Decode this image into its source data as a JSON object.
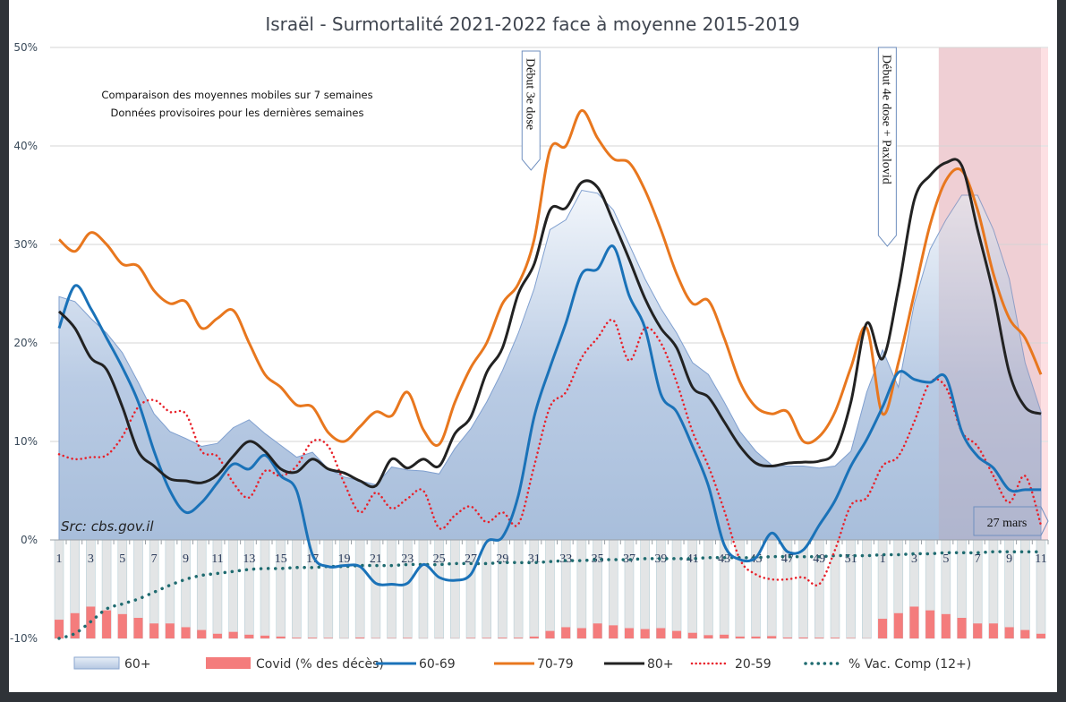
{
  "chart_data": {
    "type": "line",
    "title": "Israël - Surmortalité 2021-2022 face à moyenne 2015-2019",
    "notes": [
      "Comparaison des moyennes mobiles sur 7 semaines",
      "Données provisoires pour les dernières semaines"
    ],
    "source": "Src: cbs.gov.il",
    "xlabel": "",
    "ylabel": "",
    "ylim": [
      -10,
      50
    ],
    "yticks": [
      50,
      40,
      30,
      20,
      10,
      0,
      -10
    ],
    "ytick_labels": [
      "50%",
      "40%",
      "30%",
      "20%",
      "10%",
      "0%",
      "-10%"
    ],
    "grid": true,
    "legend_position": "bottom",
    "x": [
      "1",
      "2",
      "3",
      "4",
      "5",
      "6",
      "7",
      "8",
      "9",
      "10",
      "11",
      "12",
      "13",
      "14",
      "15",
      "16",
      "17",
      "18",
      "19",
      "20",
      "21",
      "22",
      "23",
      "24",
      "25",
      "26",
      "27",
      "28",
      "29",
      "30",
      "31",
      "32",
      "33",
      "34",
      "35",
      "36",
      "37",
      "38",
      "39",
      "40",
      "41",
      "42",
      "43",
      "44",
      "45",
      "46",
      "47",
      "48",
      "49",
      "50",
      "51",
      "52",
      "1",
      "2",
      "3",
      "4",
      "5",
      "6",
      "7",
      "8",
      "9",
      "10",
      "11"
    ],
    "xtick_labels": [
      "1",
      "3",
      "5",
      "7",
      "9",
      "11",
      "13",
      "15",
      "17",
      "19",
      "21",
      "23",
      "25",
      "27",
      "29",
      "31",
      "33",
      "35",
      "37",
      "39",
      "41",
      "43",
      "45",
      "47",
      "49",
      "51",
      "1",
      "3",
      "5",
      "7",
      "9",
      "11"
    ],
    "series": [
      {
        "name": "60+",
        "kind": "area",
        "color": "#a9c0de",
        "values": [
          24.7,
          24.2,
          22.5,
          21.0,
          19.0,
          16.0,
          12.8,
          11.0,
          10.3,
          9.5,
          9.8,
          11.4,
          12.2,
          10.8,
          9.6,
          8.4,
          8.9,
          7.2,
          6.4,
          6.0,
          5.6,
          7.4,
          7.1,
          7.0,
          6.7,
          9.3,
          11.3,
          14.0,
          17.2,
          21.0,
          25.5,
          31.5,
          32.5,
          35.5,
          35.2,
          33.5,
          30.0,
          26.5,
          23.5,
          21.0,
          18.0,
          16.8,
          14.0,
          11.0,
          9.0,
          7.6,
          7.5,
          7.5,
          7.3,
          7.5,
          9.0,
          15.0,
          19.3,
          15.5,
          24.0,
          29.5,
          32.5,
          35.0,
          35.0,
          31.5,
          26.5,
          18.0,
          13.0
        ]
      },
      {
        "name": "Covid (% des décès)",
        "kind": "bar",
        "color": "#f47c7c",
        "values": [
          20,
          27,
          34,
          30,
          26,
          22,
          16,
          16,
          12,
          9,
          5,
          7,
          4,
          3,
          2,
          0.8,
          0.8,
          0.6,
          0.2,
          1,
          0.4,
          0.4,
          0.6,
          0.2,
          0.2,
          0.2,
          0.6,
          0.6,
          0.8,
          0.8,
          2,
          8,
          12,
          11,
          16,
          14,
          11,
          10,
          11,
          8,
          6,
          3.5,
          4,
          2,
          2,
          2.5,
          1,
          1,
          0.8,
          0.8,
          0.5,
          0.2,
          21,
          27,
          34,
          30,
          26,
          22,
          16,
          16,
          12,
          9,
          5
        ]
      },
      {
        "name": "60-69",
        "kind": "line",
        "color": "#1a72b8",
        "values": [
          21.5,
          25.8,
          23.5,
          20.5,
          17.5,
          14.0,
          9.0,
          5.0,
          2.8,
          3.8,
          5.8,
          7.7,
          7.2,
          8.6,
          6.5,
          5.0,
          -1.5,
          -2.7,
          -2.6,
          -2.7,
          -4.4,
          -4.5,
          -4.4,
          -2.5,
          -3.8,
          -4.1,
          -3.5,
          -0.2,
          0.3,
          4.5,
          12.5,
          17.5,
          22.0,
          27.0,
          27.5,
          29.8,
          24.8,
          21.5,
          14.8,
          13.0,
          9.5,
          5.5,
          -0.5,
          -2.0,
          -1.8,
          0.7,
          -1.2,
          -1.0,
          1.5,
          4.0,
          7.5,
          10.2,
          13.5,
          17.0,
          16.3,
          16.0,
          16.5,
          11.0,
          8.5,
          7.3,
          5.1,
          5.1,
          5.1
        ]
      },
      {
        "name": "70-79",
        "kind": "line",
        "color": "#e8771e",
        "values": [
          30.5,
          29.3,
          31.2,
          30.0,
          28.0,
          27.8,
          25.3,
          24.0,
          24.2,
          21.5,
          22.5,
          23.3,
          20.0,
          16.8,
          15.5,
          13.7,
          13.5,
          10.9,
          10.0,
          11.5,
          13.0,
          12.6,
          15.0,
          11.2,
          9.7,
          14.0,
          17.5,
          20.0,
          24.0,
          26.0,
          30.5,
          39.6,
          40.0,
          43.6,
          40.8,
          38.7,
          38.3,
          35.5,
          31.5,
          27.0,
          24.0,
          24.3,
          20.5,
          16.0,
          13.5,
          12.8,
          13.0,
          10.0,
          10.5,
          13.0,
          17.5,
          21.5,
          12.8,
          18.0,
          25.0,
          32.0,
          36.5,
          37.5,
          33.5,
          27.0,
          22.5,
          20.5,
          16.8
        ]
      },
      {
        "name": "80+",
        "kind": "line",
        "color": "#222222",
        "values": [
          23.2,
          21.5,
          18.5,
          17.3,
          13.5,
          9.0,
          7.5,
          6.2,
          6.0,
          5.8,
          6.6,
          8.5,
          10.0,
          9.0,
          7.2,
          6.9,
          8.2,
          7.2,
          6.8,
          6.0,
          5.5,
          8.2,
          7.3,
          8.2,
          7.5,
          10.8,
          12.5,
          17.0,
          19.5,
          25.0,
          28.0,
          33.5,
          33.7,
          36.3,
          35.8,
          32.3,
          28.5,
          24.5,
          21.5,
          19.5,
          15.5,
          14.5,
          12.0,
          9.5,
          7.8,
          7.5,
          7.8,
          7.9,
          8.0,
          9.0,
          14.0,
          22.0,
          18.4,
          25.5,
          34.5,
          37.0,
          38.3,
          38.0,
          31.5,
          25.0,
          17.0,
          13.5,
          12.8
        ]
      },
      {
        "name": "20-59",
        "kind": "line",
        "color": "#e8212a",
        "style": "dotted",
        "values": [
          8.7,
          8.2,
          8.4,
          8.6,
          10.5,
          13.5,
          14.2,
          13.0,
          12.8,
          9.0,
          8.5,
          5.8,
          4.3,
          7.0,
          6.5,
          7.5,
          10.0,
          9.5,
          5.8,
          2.8,
          4.8,
          3.2,
          4.2,
          5.0,
          1.2,
          2.5,
          3.4,
          1.8,
          2.8,
          1.6,
          7.5,
          13.5,
          15.0,
          18.5,
          20.5,
          22.3,
          18.2,
          21.5,
          20.0,
          16.0,
          11.0,
          7.5,
          3.0,
          -2.0,
          -3.5,
          -4.0,
          -4.0,
          -3.8,
          -4.5,
          -1.0,
          3.5,
          4.3,
          7.5,
          8.5,
          12.0,
          16.0,
          15.5,
          11.0,
          9.5,
          6.5,
          3.8,
          6.5,
          1.5
        ]
      },
      {
        "name": "% Vac. Comp (12+)",
        "kind": "line",
        "color": "#1f6b70",
        "style": "dotted",
        "values": [
          -10.0,
          -9.5,
          -8.3,
          -7.0,
          -6.5,
          -6.0,
          -5.3,
          -4.6,
          -4.0,
          -3.6,
          -3.4,
          -3.2,
          -3.0,
          -2.9,
          -2.9,
          -2.8,
          -2.8,
          -2.7,
          -2.7,
          -2.6,
          -2.6,
          -2.6,
          -2.5,
          -2.5,
          -2.5,
          -2.4,
          -2.4,
          -2.4,
          -2.3,
          -2.3,
          -2.3,
          -2.2,
          -2.1,
          -2.1,
          -2.0,
          -2.0,
          -2.0,
          -1.9,
          -1.9,
          -1.9,
          -1.9,
          -1.8,
          -1.8,
          -1.8,
          -1.8,
          -1.7,
          -1.7,
          -1.7,
          -1.7,
          -1.6,
          -1.6,
          -1.6,
          -1.5,
          -1.5,
          -1.4,
          -1.4,
          -1.3,
          -1.3,
          -1.3,
          -1.2,
          -1.2,
          -1.2,
          -1.2
        ]
      }
    ],
    "annotations": [
      {
        "text": "Début 3e dose",
        "at_index": 30
      },
      {
        "text": "Début 4e dose + Paxlovid",
        "at_index": 53
      },
      {
        "text": "27 mars",
        "at_index": 62
      }
    ],
    "shaded_region": {
      "from_index": 56,
      "to_index": 62,
      "color": "#fde0e3",
      "meaning": "provisional data"
    }
  }
}
